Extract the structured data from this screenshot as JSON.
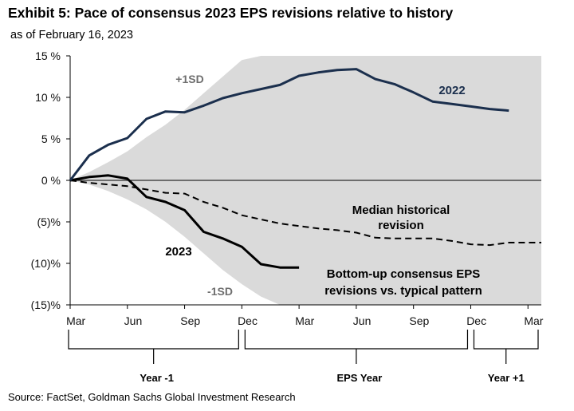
{
  "title": "Exhibit 5: Pace of consensus 2023 EPS revisions relative to history",
  "subtitle": "as of February 16, 2023",
  "source": "Source: FactSet, Goldman Sachs Global Investment Research",
  "colors": {
    "band": "#dadada",
    "line2022": "#1b2f4d",
    "line2023": "#000000",
    "median": "#000000",
    "sd_label": "#6f6f6f"
  },
  "chart_data": {
    "type": "line",
    "title": "Exhibit 5: Pace of consensus 2023 EPS revisions relative to history",
    "ylabel": "",
    "xlabel": "",
    "ylim": [
      -15,
      15
    ],
    "xlim": [
      0,
      24.7
    ],
    "y_ticks": [
      {
        "value": 15,
        "label": "15 %"
      },
      {
        "value": 10,
        "label": "10 %"
      },
      {
        "value": 5,
        "label": "5 %"
      },
      {
        "value": 0,
        "label": "0 %"
      },
      {
        "value": -5,
        "label": "(5)%"
      },
      {
        "value": -10,
        "label": "(10)%"
      },
      {
        "value": -15,
        "label": "(15)%"
      }
    ],
    "x_ticks": [
      {
        "value": 0.3,
        "label": "Mar"
      },
      {
        "value": 3.3,
        "label": "Jun"
      },
      {
        "value": 6.3,
        "label": "Sep"
      },
      {
        "value": 9.3,
        "label": "Dec"
      },
      {
        "value": 12.3,
        "label": "Mar"
      },
      {
        "value": 15.3,
        "label": "Jun"
      },
      {
        "value": 18.3,
        "label": "Sep"
      },
      {
        "value": 21.3,
        "label": "Dec"
      },
      {
        "value": 24.3,
        "label": "Mar"
      }
    ],
    "periods": [
      {
        "label": "Year -1",
        "from": 0,
        "to": 9
      },
      {
        "label": "EPS Year",
        "from": 9,
        "to": 21
      },
      {
        "label": "Year +1",
        "from": 21,
        "to": 24.7
      }
    ],
    "series": [
      {
        "name": "+1SD",
        "label": "+1SD",
        "role": "band_upper",
        "x": [
          0,
          1,
          2,
          3,
          4,
          5,
          6,
          7,
          8,
          9,
          10,
          11,
          11.5,
          24.7
        ],
        "values": [
          0,
          1.0,
          2.2,
          3.5,
          5.2,
          6.7,
          8.5,
          10.5,
          12.5,
          14.5,
          15,
          15,
          15,
          15
        ]
      },
      {
        "name": "-1SD",
        "label": "-1SD",
        "role": "band_lower",
        "x": [
          0,
          1,
          2,
          3,
          4,
          5,
          6,
          7,
          8,
          9,
          10,
          11,
          11.3,
          24.7
        ],
        "values": [
          0,
          -0.5,
          -1.3,
          -2.3,
          -3.5,
          -5.0,
          -6.8,
          -8.8,
          -10.8,
          -12.5,
          -14.0,
          -15,
          -15,
          -15
        ]
      },
      {
        "name": "2022",
        "label": "2022",
        "x": [
          0,
          1,
          2,
          3,
          4,
          5,
          6,
          7,
          8,
          9,
          10,
          11,
          12,
          13,
          14,
          15,
          16,
          17,
          18,
          19,
          20,
          21,
          22,
          23
        ],
        "values": [
          0,
          3.0,
          4.3,
          5.1,
          7.4,
          8.3,
          8.2,
          9.0,
          9.9,
          10.5,
          11.0,
          11.5,
          12.6,
          13.0,
          13.3,
          13.4,
          12.2,
          11.6,
          10.6,
          9.5,
          9.2,
          8.9,
          8.6,
          8.4
        ]
      },
      {
        "name": "2023",
        "label": "2023",
        "x": [
          0,
          1,
          2,
          3,
          4,
          5,
          6,
          7,
          8,
          9,
          10,
          11,
          12
        ],
        "values": [
          0,
          0.4,
          0.6,
          0.2,
          -2.0,
          -2.6,
          -3.6,
          -6.2,
          -7.0,
          -8.0,
          -10.1,
          -10.5,
          -10.5
        ]
      },
      {
        "name": "Median historical revision",
        "label": "Median historical revision",
        "label_lines": [
          "Median historical",
          "revision"
        ],
        "style": "dashed",
        "x": [
          0,
          1,
          2,
          3,
          4,
          5,
          6,
          7,
          8,
          9,
          10,
          11,
          12,
          13,
          14,
          15,
          16,
          17,
          18,
          19,
          20,
          21,
          22,
          23,
          24.7
        ],
        "values": [
          0,
          -0.3,
          -0.5,
          -0.7,
          -1.1,
          -1.5,
          -1.6,
          -2.6,
          -3.3,
          -4.2,
          -4.7,
          -5.2,
          -5.5,
          -5.8,
          -6.0,
          -6.3,
          -6.9,
          -7.0,
          -7.0,
          -7.0,
          -7.3,
          -7.7,
          -7.8,
          -7.5,
          -7.5
        ]
      }
    ],
    "annotations": [
      {
        "name": "pattern-note",
        "lines": [
          "Bottom-up consensus EPS",
          "revisions vs. typical pattern"
        ]
      }
    ]
  }
}
